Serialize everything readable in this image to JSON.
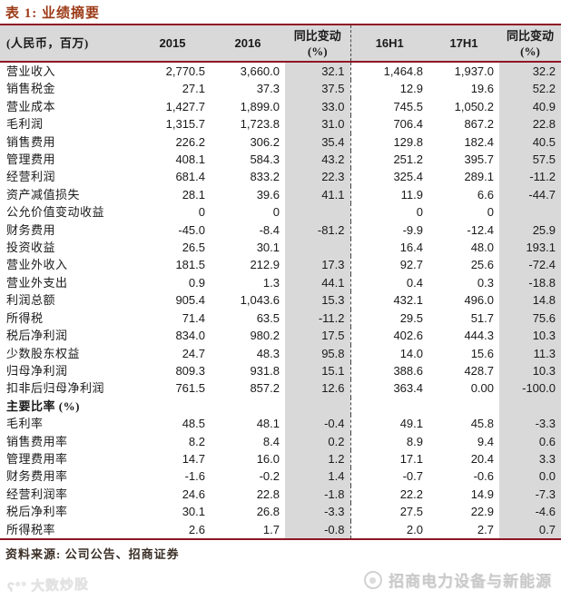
{
  "page_title": "表 1: 业绩摘要",
  "table": {
    "unit_header": "(人民币，百万)",
    "columns": [
      "2015",
      "2016",
      "同比变动\n(%)",
      "16H1",
      "17H1",
      "同比变动\n(%)"
    ],
    "rows": [
      {
        "type": "data",
        "label": "营业收入",
        "values": [
          "2,770.5",
          "3,660.0",
          "32.1",
          "1,464.8",
          "1,937.0",
          "32.2"
        ]
      },
      {
        "type": "data",
        "label": "销售税金",
        "values": [
          "27.1",
          "37.3",
          "37.5",
          "12.9",
          "19.6",
          "52.2"
        ]
      },
      {
        "type": "data",
        "label": "营业成本",
        "values": [
          "1,427.7",
          "1,899.0",
          "33.0",
          "745.5",
          "1,050.2",
          "40.9"
        ]
      },
      {
        "type": "data",
        "label": "毛利润",
        "values": [
          "1,315.7",
          "1,723.8",
          "31.0",
          "706.4",
          "867.2",
          "22.8"
        ]
      },
      {
        "type": "data",
        "label": "销售费用",
        "values": [
          "226.2",
          "306.2",
          "35.4",
          "129.8",
          "182.4",
          "40.5"
        ]
      },
      {
        "type": "data",
        "label": "管理费用",
        "values": [
          "408.1",
          "584.3",
          "43.2",
          "251.2",
          "395.7",
          "57.5"
        ]
      },
      {
        "type": "data",
        "label": "经营利润",
        "values": [
          "681.4",
          "833.2",
          "22.3",
          "325.4",
          "289.1",
          "-11.2"
        ]
      },
      {
        "type": "data",
        "label": "资产减值损失",
        "values": [
          "28.1",
          "39.6",
          "41.1",
          "11.9",
          "6.6",
          "-44.7"
        ]
      },
      {
        "type": "data",
        "label": "公允价值变动收益",
        "values": [
          "0",
          "0",
          "",
          "0",
          "0",
          ""
        ]
      },
      {
        "type": "data",
        "label": "财务费用",
        "values": [
          "-45.0",
          "-8.4",
          "-81.2",
          "-9.9",
          "-12.4",
          "25.9"
        ]
      },
      {
        "type": "data",
        "label": "投资收益",
        "values": [
          "26.5",
          "30.1",
          "",
          "16.4",
          "48.0",
          "193.1"
        ]
      },
      {
        "type": "data",
        "label": "营业外收入",
        "values": [
          "181.5",
          "212.9",
          "17.3",
          "92.7",
          "25.6",
          "-72.4"
        ]
      },
      {
        "type": "data",
        "label": "营业外支出",
        "values": [
          "0.9",
          "1.3",
          "44.1",
          "0.4",
          "0.3",
          "-18.8"
        ]
      },
      {
        "type": "data",
        "label": "利润总额",
        "values": [
          "905.4",
          "1,043.6",
          "15.3",
          "432.1",
          "496.0",
          "14.8"
        ]
      },
      {
        "type": "data",
        "label": "所得税",
        "values": [
          "71.4",
          "63.5",
          "-11.2",
          "29.5",
          "51.7",
          "75.6"
        ]
      },
      {
        "type": "data",
        "label": "税后净利润",
        "values": [
          "834.0",
          "980.2",
          "17.5",
          "402.6",
          "444.3",
          "10.3"
        ]
      },
      {
        "type": "data",
        "label": "少数股东权益",
        "values": [
          "24.7",
          "48.3",
          "95.8",
          "14.0",
          "15.6",
          "11.3"
        ]
      },
      {
        "type": "data",
        "label": "归母净利润",
        "values": [
          "809.3",
          "931.8",
          "15.1",
          "388.6",
          "428.7",
          "10.3"
        ]
      },
      {
        "type": "data",
        "label": "扣非后归母净利润",
        "values": [
          "761.5",
          "857.2",
          "12.6",
          "363.4",
          "0.00",
          "-100.0"
        ]
      },
      {
        "type": "section",
        "label": "主要比率 (%)",
        "values": [
          "",
          "",
          "",
          "",
          "",
          ""
        ]
      },
      {
        "type": "data",
        "label": "毛利率",
        "values": [
          "48.5",
          "48.1",
          "-0.4",
          "49.1",
          "45.8",
          "-3.3"
        ]
      },
      {
        "type": "data",
        "label": "销售费用率",
        "values": [
          "8.2",
          "8.4",
          "0.2",
          "8.9",
          "9.4",
          "0.6"
        ]
      },
      {
        "type": "data",
        "label": "管理费用率",
        "values": [
          "14.7",
          "16.0",
          "1.2",
          "17.1",
          "20.4",
          "3.3"
        ]
      },
      {
        "type": "data",
        "label": "财务费用率",
        "values": [
          "-1.6",
          "-0.2",
          "1.4",
          "-0.7",
          "-0.6",
          "0.0"
        ]
      },
      {
        "type": "data",
        "label": "经营利润率",
        "values": [
          "24.6",
          "22.8",
          "-1.8",
          "22.2",
          "14.9",
          "-7.3"
        ]
      },
      {
        "type": "data",
        "label": "税后净利率",
        "values": [
          "30.1",
          "26.8",
          "-3.3",
          "27.5",
          "22.9",
          "-4.6"
        ]
      },
      {
        "type": "data",
        "label": "所得税率",
        "values": [
          "2.6",
          "1.7",
          "-0.8",
          "2.0",
          "2.7",
          "0.7"
        ]
      }
    ]
  },
  "footer": {
    "source": "资料来源: 公司公告、招商证券"
  },
  "watermarks": {
    "left_text": "大数炒股",
    "right_text": "招商电力设备与新能源"
  },
  "colors": {
    "rule_red": "#8e1626",
    "title_red": "#9c3a16",
    "band_gray": "#d9d9d9",
    "watermark_gray": "#c9c9c9"
  }
}
